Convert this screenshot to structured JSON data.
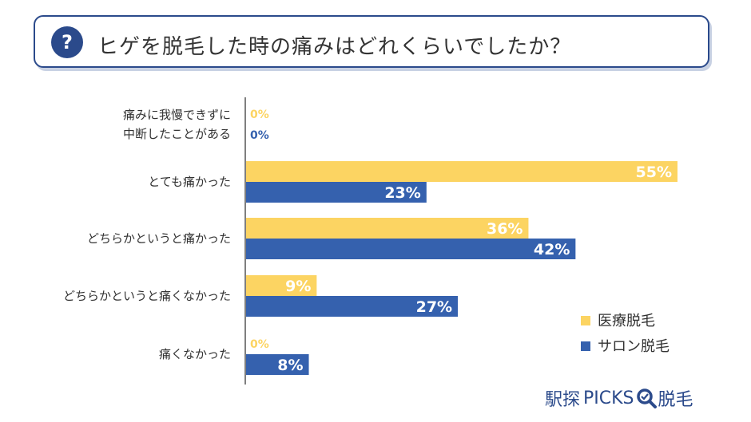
{
  "title": {
    "badge": "?",
    "text": "ヒゲを脱毛した時の痛みはどれくらいでしたか？"
  },
  "colors": {
    "medical": "#fcd462",
    "salon": "#3561ae",
    "accent": "#2b4a8b"
  },
  "chart_data": {
    "type": "bar",
    "orientation": "horizontal",
    "title": "ヒゲを脱毛した時の痛みはどれくらいでしたか？",
    "categories": [
      [
        "痛みに我慢できずに",
        "中断したことがある"
      ],
      [
        "とても痛かった"
      ],
      [
        "どちらかというと痛かった"
      ],
      [
        "どちらかというと痛くなかった"
      ],
      [
        "痛くなかった"
      ]
    ],
    "series": [
      {
        "name": "医療脱毛",
        "color": "#fcd462",
        "values": [
          0,
          55,
          36,
          9,
          0
        ]
      },
      {
        "name": "サロン脱毛",
        "color": "#3561ae",
        "values": [
          0,
          23,
          42,
          27,
          8
        ]
      }
    ],
    "unit": "%",
    "xlim": [
      0,
      55
    ],
    "grid": false,
    "legend_position": "bottom-right"
  },
  "logo": {
    "kanji": "駅探",
    "brand": "PICKS",
    "suffix": "脱毛"
  }
}
